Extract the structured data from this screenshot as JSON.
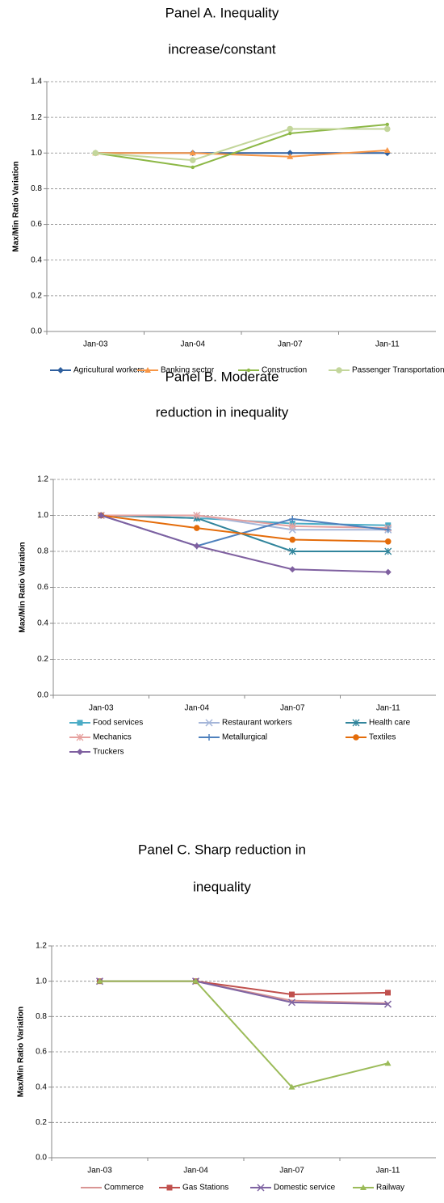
{
  "chart_data": [
    {
      "type": "line",
      "title": [
        "Panel A. Inequality",
        "increase/constant"
      ],
      "y_label": "Max/Min Ratio Variation",
      "categories": [
        "Jan-03",
        "Jan-04",
        "Jan-07",
        "Jan-11"
      ],
      "ylim": [
        0,
        1.4
      ],
      "yticks": [
        {
          "value": 0,
          "label": "0.0"
        },
        0.2,
        0.4,
        0.6,
        0.8,
        {
          "value": 1,
          "label": "1.0"
        },
        1.2,
        1.4
      ],
      "grid": true,
      "series": [
        {
          "name": "Agricultural workers",
          "color": "#2e5f9e",
          "marker": "diamond",
          "values": [
            1,
            1,
            1,
            1
          ]
        },
        {
          "name": "Banking sector",
          "color": "#f79646",
          "marker": "triangle",
          "values": [
            1,
            1,
            0.98,
            1.015
          ]
        },
        {
          "name": "Construction",
          "color": "#8db847",
          "marker": "dot",
          "values": [
            1,
            0.92,
            1.11,
            1.16
          ]
        },
        {
          "name": "Passenger Transportation",
          "color": "#c3d69b",
          "marker": "circle",
          "values": [
            1,
            0.96,
            1.135,
            1.135
          ]
        }
      ]
    },
    {
      "type": "line",
      "title": [
        "Panel B. Moderate",
        "reduction in inequality"
      ],
      "y_label": "Max/Min Ratio Variation",
      "categories": [
        "Jan-03",
        "Jan-04",
        "Jan-07",
        "Jan-11"
      ],
      "ylim": [
        0,
        1.2
      ],
      "yticks": [
        {
          "value": 0,
          "label": "0.0"
        },
        0.2,
        0.4,
        0.6,
        0.8,
        {
          "value": 1,
          "label": "1.0"
        },
        1.2
      ],
      "grid": true,
      "series": [
        {
          "name": "Food services",
          "color": "#4bacc6",
          "marker": "square",
          "values": [
            1,
            0.985,
            0.955,
            0.945
          ]
        },
        {
          "name": "Restaurant workers",
          "color": "#a5b6d9",
          "marker": "x",
          "values": [
            1,
            1,
            0.92,
            0.92
          ]
        },
        {
          "name": "Health care",
          "color": "#31859c",
          "marker": "star",
          "values": [
            1,
            0.985,
            0.8,
            0.8
          ]
        },
        {
          "name": "Mechanics",
          "color": "#e6a19f",
          "marker": "star",
          "values": [
            1,
            1,
            0.94,
            0.93
          ]
        },
        {
          "name": "Metallurgical",
          "color": "#4f81bd",
          "marker": "plus",
          "values": [
            1,
            0.83,
            0.98,
            0.92
          ]
        },
        {
          "name": "Textiles",
          "color": "#e46c0a",
          "marker": "circle",
          "values": [
            1,
            0.93,
            0.865,
            0.855
          ]
        },
        {
          "name": "Truckers",
          "color": "#7f60a0",
          "marker": "diamond",
          "values": [
            1,
            0.83,
            0.7,
            0.685
          ]
        }
      ]
    },
    {
      "type": "line",
      "title": [
        "Panel C. Sharp reduction in",
        "inequality"
      ],
      "y_label": "Max/Min Ratio Variation",
      "categories": [
        "Jan-03",
        "Jan-04",
        "Jan-07",
        "Jan-11"
      ],
      "ylim": [
        0,
        1.2
      ],
      "yticks": [
        {
          "value": 0,
          "label": "0.0"
        },
        0.2,
        0.4,
        0.6,
        0.8,
        {
          "value": 1,
          "label": "1.0"
        },
        1.2
      ],
      "grid": true,
      "series": [
        {
          "name": "Commerce",
          "color": "#d99594",
          "marker": "none",
          "values": [
            1,
            1,
            0.89,
            0.875
          ]
        },
        {
          "name": "Gas Stations",
          "color": "#c0504d",
          "marker": "square",
          "values": [
            1,
            1,
            0.925,
            0.935
          ]
        },
        {
          "name": "Domestic service",
          "color": "#7f64a2",
          "marker": "x",
          "values": [
            1,
            1,
            0.88,
            0.87
          ]
        },
        {
          "name": "Railway",
          "color": "#9bbb59",
          "marker": "triangle",
          "values": [
            1,
            1,
            0.4,
            0.535
          ]
        }
      ]
    }
  ]
}
